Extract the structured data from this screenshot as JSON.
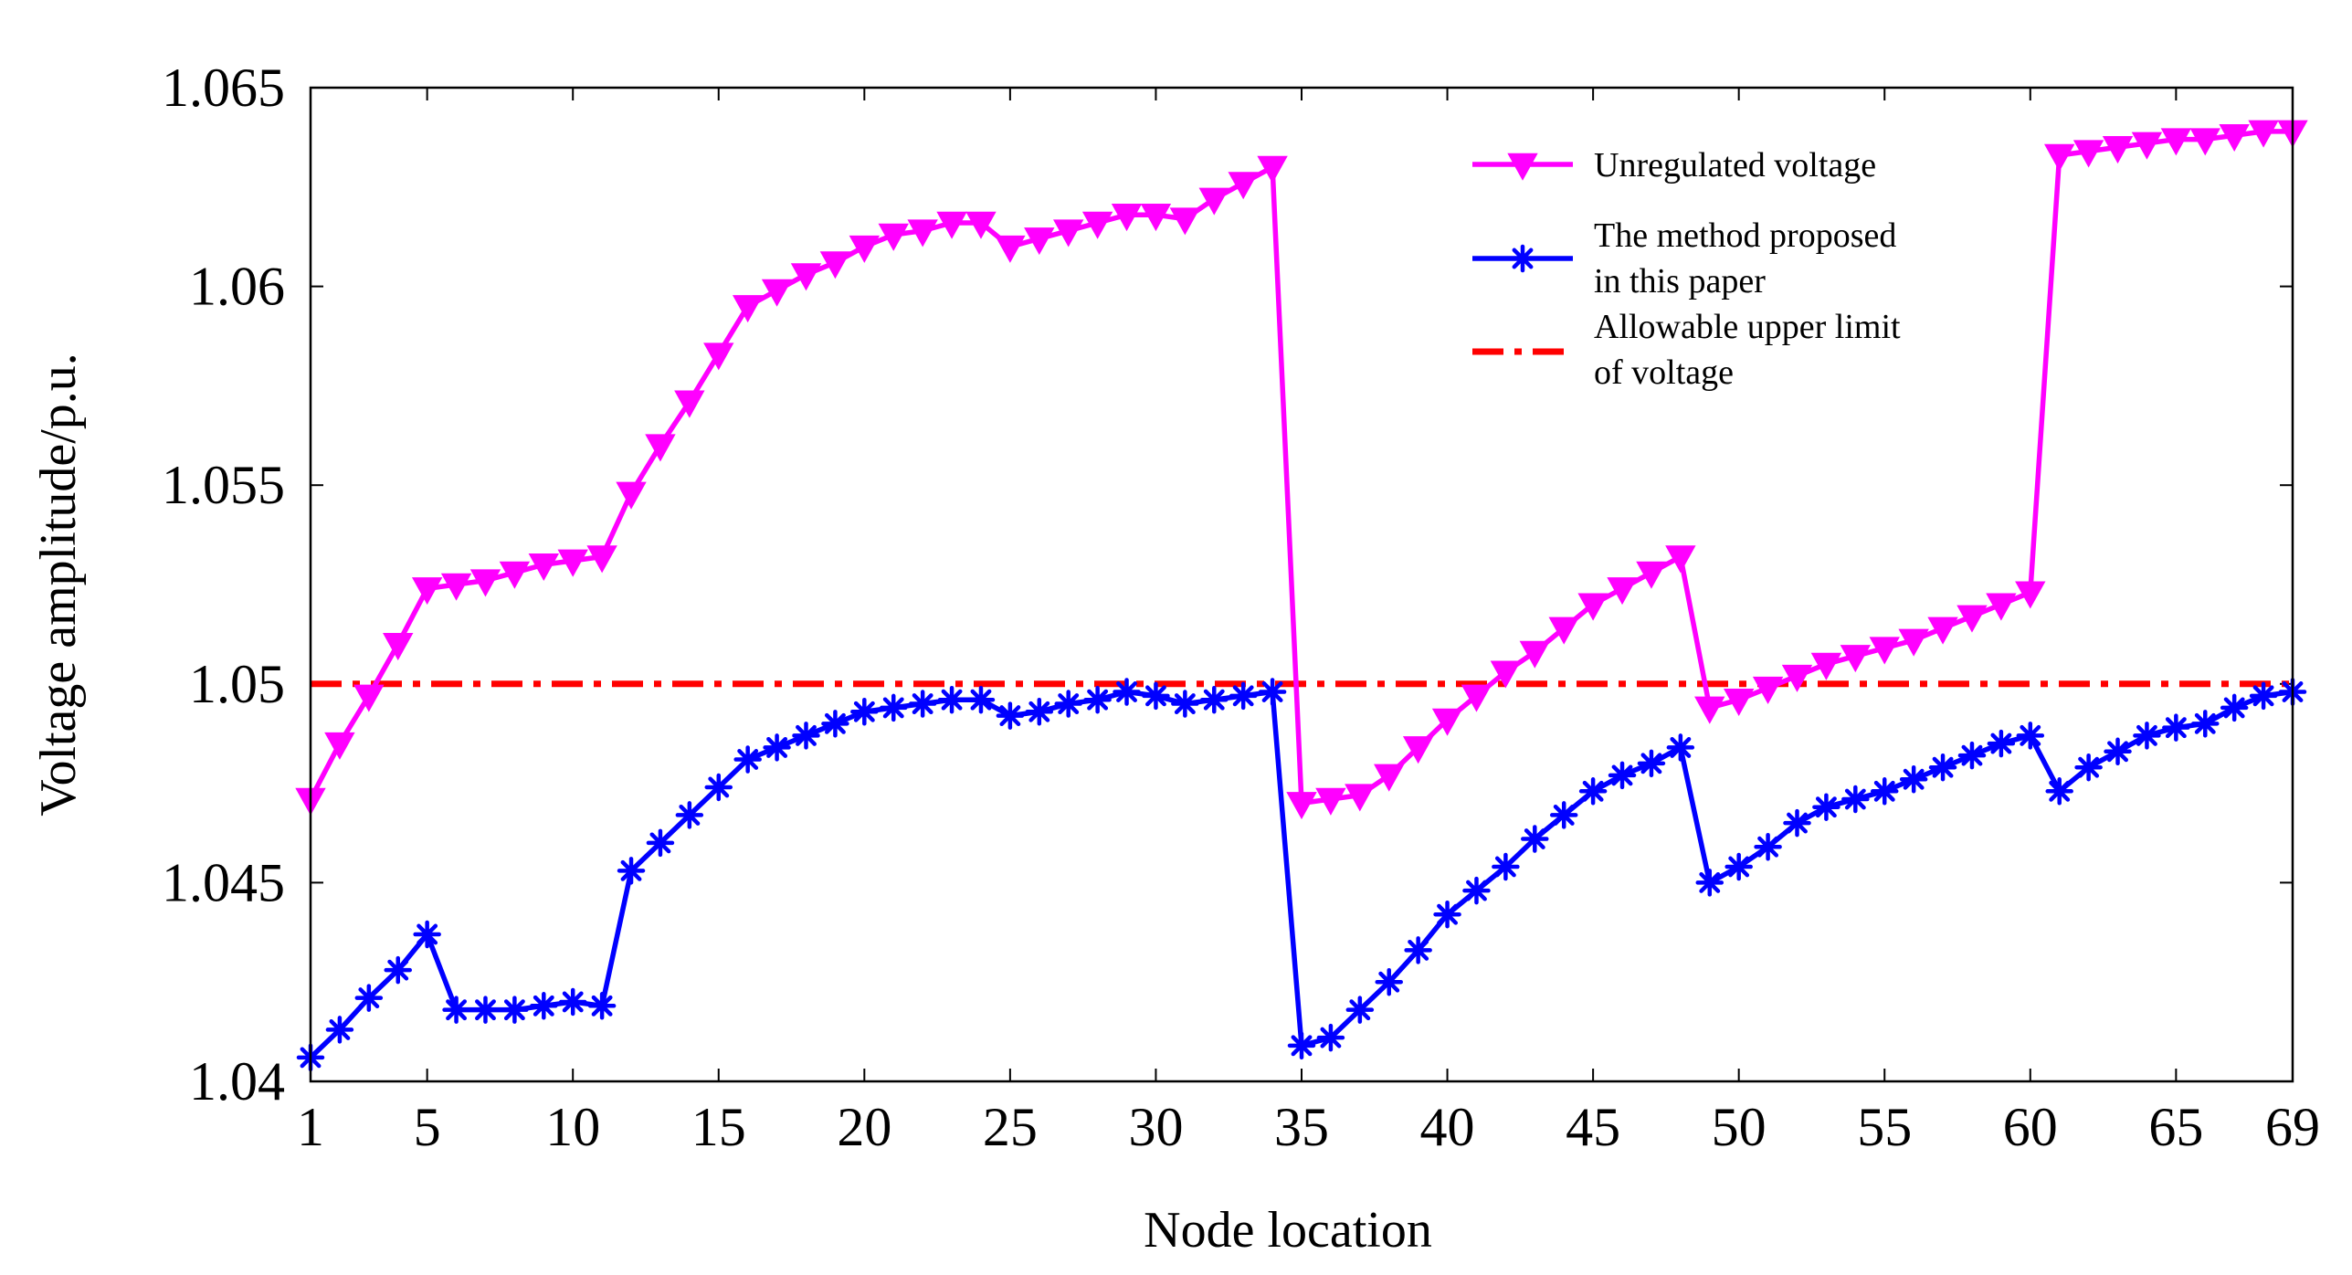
{
  "chart_data": {
    "type": "line",
    "title": "",
    "xlabel": "Node location",
    "ylabel": "Voltage amplitude/p.u.",
    "xlim": [
      1,
      69
    ],
    "ylim": [
      1.04,
      1.065
    ],
    "xticks": [
      1,
      5,
      10,
      15,
      20,
      25,
      30,
      35,
      40,
      45,
      50,
      55,
      60,
      65,
      69
    ],
    "xtick_labels": [
      "1",
      "5",
      "10",
      "15",
      "20",
      "25",
      "30",
      "35",
      "40",
      "45",
      "50",
      "55",
      "60",
      "65",
      "69"
    ],
    "yticks": [
      1.04,
      1.045,
      1.05,
      1.055,
      1.06,
      1.065
    ],
    "ytick_labels": [
      "1.04",
      "1.045",
      "1.05",
      "1.055",
      "1.06",
      "1.065"
    ],
    "legend_position": "top-right",
    "series": [
      {
        "name": "Unregulated voltage",
        "legend_lines": [
          "Unregulated voltage"
        ],
        "color": "#ff00ff",
        "marker": "triangle-down",
        "x": [
          1,
          2,
          3,
          4,
          5,
          6,
          7,
          8,
          9,
          10,
          11,
          12,
          13,
          14,
          15,
          16,
          17,
          18,
          19,
          20,
          21,
          22,
          23,
          24,
          25,
          26,
          27,
          28,
          29,
          30,
          31,
          32,
          33,
          34,
          35,
          36,
          37,
          38,
          39,
          40,
          41,
          42,
          43,
          44,
          45,
          46,
          47,
          48,
          49,
          50,
          51,
          52,
          53,
          54,
          55,
          56,
          57,
          58,
          59,
          60,
          61,
          62,
          63,
          64,
          65,
          66,
          67,
          68,
          69
        ],
        "values": [
          1.0471,
          1.0485,
          1.0497,
          1.051,
          1.0524,
          1.0525,
          1.0526,
          1.0528,
          1.053,
          1.0531,
          1.0532,
          1.0548,
          1.056,
          1.0571,
          1.0583,
          1.0595,
          1.0599,
          1.0603,
          1.0606,
          1.061,
          1.0613,
          1.0614,
          1.0616,
          1.0616,
          1.061,
          1.0612,
          1.0614,
          1.0616,
          1.0618,
          1.0618,
          1.0617,
          1.0622,
          1.0626,
          1.063,
          1.047,
          1.0471,
          1.0472,
          1.0477,
          1.0484,
          1.0491,
          1.0497,
          1.0503,
          1.0508,
          1.0514,
          1.052,
          1.0524,
          1.0528,
          1.0532,
          1.0494,
          1.0496,
          1.0499,
          1.0502,
          1.0505,
          1.0507,
          1.0509,
          1.0511,
          1.0514,
          1.0517,
          1.052,
          1.0523,
          1.0633,
          1.0634,
          1.0635,
          1.0636,
          1.0637,
          1.0637,
          1.0638,
          1.0639,
          1.0639
        ]
      },
      {
        "name": "The method proposed in this paper",
        "legend_lines": [
          "The method proposed",
          "in this paper"
        ],
        "color": "#0000ff",
        "marker": "asterisk",
        "x": [
          1,
          2,
          3,
          4,
          5,
          6,
          7,
          8,
          9,
          10,
          11,
          12,
          13,
          14,
          15,
          16,
          17,
          18,
          19,
          20,
          21,
          22,
          23,
          24,
          25,
          26,
          27,
          28,
          29,
          30,
          31,
          32,
          33,
          34,
          35,
          36,
          37,
          38,
          39,
          40,
          41,
          42,
          43,
          44,
          45,
          46,
          47,
          48,
          49,
          50,
          51,
          52,
          53,
          54,
          55,
          56,
          57,
          58,
          59,
          60,
          61,
          62,
          63,
          64,
          65,
          66,
          67,
          68,
          69
        ],
        "values": [
          1.0406,
          1.0413,
          1.0421,
          1.0428,
          1.0437,
          1.0418,
          1.0418,
          1.0418,
          1.0419,
          1.042,
          1.0419,
          1.0453,
          1.046,
          1.0467,
          1.0474,
          1.0481,
          1.0484,
          1.0487,
          1.049,
          1.0493,
          1.0494,
          1.0495,
          1.0496,
          1.0496,
          1.0492,
          1.0493,
          1.0495,
          1.0496,
          1.0498,
          1.0497,
          1.0495,
          1.0496,
          1.0497,
          1.0498,
          1.0409,
          1.0411,
          1.0418,
          1.0425,
          1.0433,
          1.0442,
          1.0448,
          1.0454,
          1.0461,
          1.0467,
          1.0473,
          1.0477,
          1.048,
          1.0484,
          1.045,
          1.0454,
          1.0459,
          1.0465,
          1.0469,
          1.0471,
          1.0473,
          1.0476,
          1.0479,
          1.0482,
          1.0485,
          1.0487,
          1.0473,
          1.0479,
          1.0483,
          1.0487,
          1.0489,
          1.049,
          1.0494,
          1.0497,
          1.0498
        ]
      },
      {
        "name": "Allowable upper limit of voltage",
        "legend_lines": [
          "Allowable upper limit",
          "of voltage"
        ],
        "color": "#ff0000",
        "marker": "none",
        "line_style": "dash-dot",
        "x": [
          1,
          69
        ],
        "values": [
          1.05,
          1.05
        ]
      }
    ]
  }
}
